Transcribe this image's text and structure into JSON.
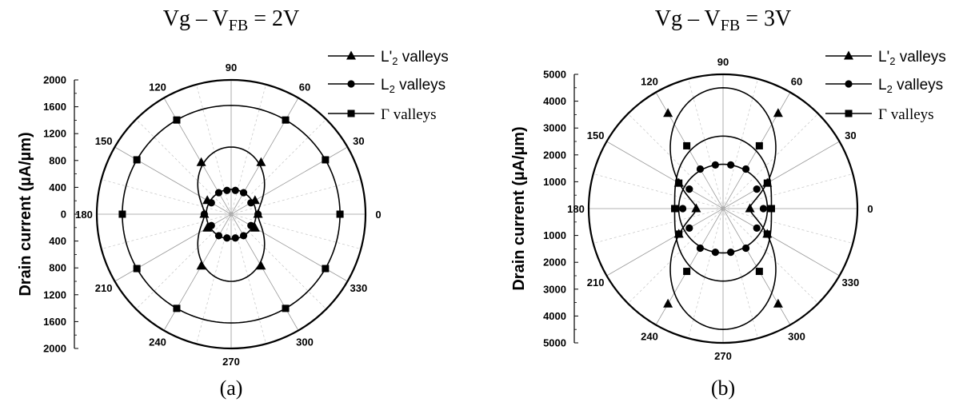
{
  "chart_data": [
    {
      "type": "polar-line",
      "panel_label": "(a)",
      "title": {
        "main": "Vg – V",
        "sub": "FB",
        "tail": " = 2V"
      },
      "ylabel": "Drain current (µA/µm)",
      "r_range": [
        0,
        2000
      ],
      "r_ticks_upper": [
        "2000",
        "1600",
        "1200",
        "800",
        "400",
        "0"
      ],
      "r_ticks_lower": [
        "400",
        "800",
        "1200",
        "1600",
        "2000"
      ],
      "angle_labels": [
        "0",
        "30",
        "60",
        "90",
        "120",
        "150",
        "180",
        "210",
        "240",
        "270",
        "300",
        "330"
      ],
      "grid": true,
      "legend_position": "top-right",
      "series": [
        {
          "name": "L'2 valleys",
          "legend_text": {
            "main": "L'",
            "sub": "2",
            "tail": " valleys"
          },
          "marker": "triangle",
          "points": [
            [
              0,
              400
            ],
            [
              30,
              410
            ],
            [
              60,
              890
            ],
            [
              120,
              890
            ],
            [
              150,
              410
            ],
            [
              180,
              400
            ],
            [
              210,
              410
            ],
            [
              240,
              890
            ],
            [
              300,
              890
            ],
            [
              330,
              410
            ]
          ],
          "curve": {
            "kind": "cos2",
            "a": 400,
            "b": 600
          }
        },
        {
          "name": "L2 valleys",
          "legend_text": {
            "main": "L",
            "sub": "2",
            "tail": " valleys"
          },
          "marker": "circle",
          "points": [
            [
              0,
              400
            ],
            [
              30,
              340
            ],
            [
              60,
              370
            ],
            [
              80,
              360
            ],
            [
              100,
              360
            ],
            [
              120,
              370
            ],
            [
              150,
              340
            ],
            [
              180,
              400
            ],
            [
              210,
              340
            ],
            [
              240,
              370
            ],
            [
              260,
              360
            ],
            [
              280,
              360
            ],
            [
              300,
              370
            ],
            [
              330,
              340
            ]
          ],
          "curve": {
            "kind": "const",
            "value": 370
          }
        },
        {
          "name": "Γ valleys",
          "legend_text": {
            "main": "Γ",
            "sub": "",
            "tail": " valleys"
          },
          "marker": "square",
          "points": [
            [
              0,
              1620
            ],
            [
              30,
              1620
            ],
            [
              60,
              1620
            ],
            [
              120,
              1620
            ],
            [
              150,
              1620
            ],
            [
              180,
              1620
            ],
            [
              210,
              1620
            ],
            [
              240,
              1620
            ],
            [
              300,
              1620
            ],
            [
              330,
              1620
            ]
          ],
          "curve": {
            "kind": "const",
            "value": 1620
          }
        }
      ]
    },
    {
      "type": "polar-line",
      "panel_label": "(b)",
      "title": {
        "main": "Vg – V",
        "sub": "FB",
        "tail": " = 3V"
      },
      "ylabel": "Drain current (µA/µm)",
      "r_range": [
        0,
        5000
      ],
      "r_ticks_upper": [
        "5000",
        "4000",
        "3000",
        "2000",
        "1000"
      ],
      "r_ticks_lower": [
        "1000",
        "2000",
        "3000",
        "4000",
        "5000"
      ],
      "angle_labels": [
        "0",
        "30",
        "60",
        "90",
        "120",
        "150",
        "180",
        "210",
        "240",
        "270",
        "300",
        "330"
      ],
      "grid": true,
      "legend_position": "top-right",
      "series": [
        {
          "name": "L'2 valleys",
          "legend_text": {
            "main": "L'",
            "sub": "2",
            "tail": " valleys"
          },
          "marker": "triangle",
          "points": [
            [
              0,
              1000
            ],
            [
              30,
              1900
            ],
            [
              60,
              4100
            ],
            [
              120,
              4100
            ],
            [
              150,
              1900
            ],
            [
              180,
              1000
            ],
            [
              210,
              1900
            ],
            [
              240,
              4100
            ],
            [
              300,
              4100
            ],
            [
              330,
              1900
            ]
          ],
          "curve": {
            "kind": "cos2",
            "a": 1000,
            "b": 3500
          }
        },
        {
          "name": "L2 valleys",
          "legend_text": {
            "main": "L",
            "sub": "2",
            "tail": " valleys"
          },
          "marker": "circle",
          "points": [
            [
              0,
              1500
            ],
            [
              30,
              1450
            ],
            [
              60,
              1700
            ],
            [
              80,
              1650
            ],
            [
              100,
              1650
            ],
            [
              120,
              1700
            ],
            [
              150,
              1450
            ],
            [
              180,
              1500
            ],
            [
              210,
              1450
            ],
            [
              240,
              1700
            ],
            [
              260,
              1650
            ],
            [
              280,
              1650
            ],
            [
              300,
              1700
            ],
            [
              330,
              1450
            ]
          ],
          "curve": {
            "kind": "const",
            "value": 1650
          }
        },
        {
          "name": "Γ valleys",
          "legend_text": {
            "main": "Γ",
            "sub": "",
            "tail": " valleys"
          },
          "marker": "square",
          "points": [
            [
              0,
              1800
            ],
            [
              30,
              1900
            ],
            [
              60,
              2700
            ],
            [
              120,
              2700
            ],
            [
              150,
              1900
            ],
            [
              180,
              1800
            ],
            [
              210,
              1900
            ],
            [
              240,
              2700
            ],
            [
              300,
              2700
            ],
            [
              330,
              1900
            ]
          ],
          "curve": {
            "kind": "cos2",
            "a": 1800,
            "b": 900
          }
        }
      ]
    }
  ]
}
